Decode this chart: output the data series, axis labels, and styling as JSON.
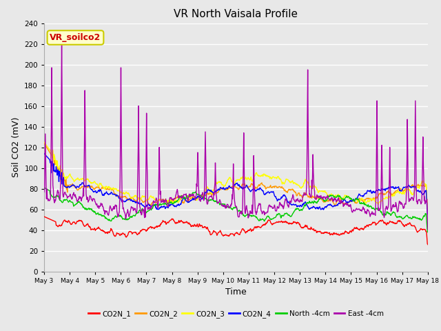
{
  "title": "VR North Vaisala Profile",
  "xlabel": "Time",
  "ylabel": "Soil CO2 (mV)",
  "ylim": [
    0,
    240
  ],
  "yticks": [
    0,
    20,
    40,
    60,
    80,
    100,
    120,
    140,
    160,
    180,
    200,
    220,
    240
  ],
  "fig_bg": "#e8e8e8",
  "plot_bg": "#e8e8e8",
  "grid_color": "#ffffff",
  "annotation_text": "VR_soilco2",
  "annotation_bg": "#ffffcc",
  "annotation_border": "#cccc00",
  "annotation_text_color": "#cc0000",
  "legend_entries": [
    "CO2N_1",
    "CO2N_2",
    "CO2N_3",
    "CO2N_4",
    "North -4cm",
    "East -4cm"
  ],
  "line_colors": [
    "#ff0000",
    "#ff9900",
    "#ffff00",
    "#0000ff",
    "#00cc00",
    "#aa00aa"
  ],
  "xtick_labels": [
    "May 3",
    "May 4",
    "May 5",
    "May 6",
    "May 7",
    "May 8",
    "May 9",
    "May 10",
    "May 11",
    "May 12",
    "May 13",
    "May 14",
    "May 15",
    "May 16",
    "May 17",
    "May 18"
  ],
  "n_points": 960
}
